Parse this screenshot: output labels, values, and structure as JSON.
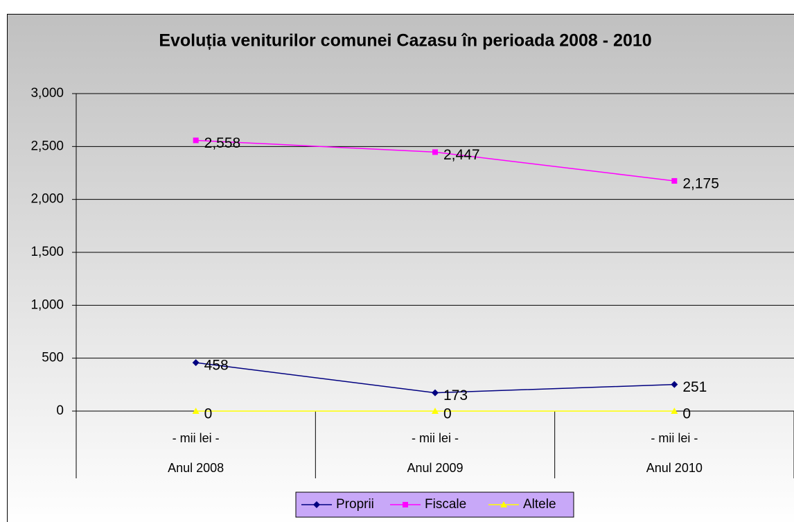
{
  "chart_data": {
    "type": "line",
    "title": "Evoluția veniturilor comunei Cazasu în perioada 2008 - 2010",
    "categories": [
      "Anul 2008",
      "Anul 2009",
      "Anul 2010"
    ],
    "category_sublabels": [
      "- mii lei -",
      "- mii lei -",
      "- mii lei -"
    ],
    "series": [
      {
        "name": "Proprii",
        "color": "#000080",
        "marker": "diamond",
        "values": [
          458,
          173,
          251
        ],
        "value_labels": [
          "458",
          "173",
          "251"
        ]
      },
      {
        "name": "Fiscale",
        "color": "#ff00ff",
        "marker": "square",
        "values": [
          2558,
          2447,
          2175
        ],
        "value_labels": [
          "2,558",
          "2,447",
          "2,175"
        ]
      },
      {
        "name": "Altele",
        "color": "#ffff00",
        "marker": "triangle",
        "values": [
          0,
          0,
          0
        ],
        "value_labels": [
          "0",
          "0",
          "0"
        ]
      }
    ],
    "ylim": [
      0,
      3000
    ],
    "yticks": [
      0,
      500,
      {
        "value": 1000,
        "label": "1,000"
      },
      {
        "value": 1500,
        "label": "1,500"
      },
      {
        "value": 2000,
        "label": "2,000"
      },
      {
        "value": 2500,
        "label": "2,500"
      },
      {
        "value": 3000,
        "label": "3,000"
      }
    ],
    "grid": true,
    "legend": "bottom"
  }
}
